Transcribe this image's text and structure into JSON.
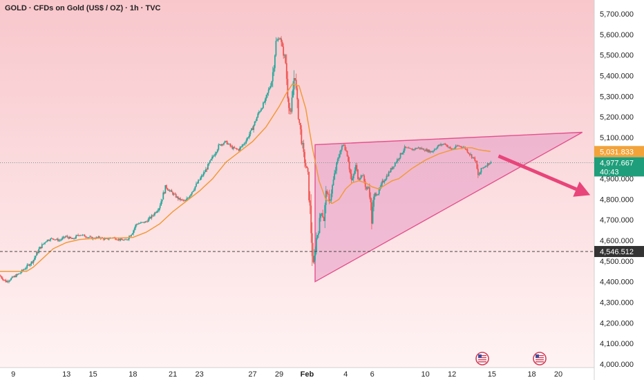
{
  "header": {
    "title": "GOLD · CFDs on Gold (US$ / OZ) · 1h · TVC"
  },
  "colors": {
    "bg_top": "#f8c7cc",
    "bg_bottom": "#fff3f3",
    "candle_up": "#26a69a",
    "candle_down": "#ef5350",
    "ma_line": "#f29a3a",
    "wedge_fill": "#e8a0c8",
    "wedge_stroke": "#e4508c",
    "arrow": "#e8457a",
    "current_tag": "#1e9e7a",
    "ma_tag": "#f2a33a",
    "support_tag": "#333333"
  },
  "chart_data": {
    "type": "candlestick",
    "symbol": "GOLD",
    "timeframe": "1h",
    "ylim": [
      4000,
      5750
    ],
    "y_ticks": [
      {
        "value": 4000,
        "label": "4,000.000"
      },
      {
        "value": 4100,
        "label": "4,100.000"
      },
      {
        "value": 4200,
        "label": "4,200.000"
      },
      {
        "value": 4300,
        "label": "4,300.000"
      },
      {
        "value": 4400,
        "label": "4,400.000"
      },
      {
        "value": 4500,
        "label": "4,500.000"
      },
      {
        "value": 4600,
        "label": "4,600.000"
      },
      {
        "value": 4700,
        "label": "4,700.000"
      },
      {
        "value": 4800,
        "label": "4,800.000"
      },
      {
        "value": 4900,
        "label": "4,900.000"
      },
      {
        "value": 5100,
        "label": "5,100.000"
      },
      {
        "value": 5200,
        "label": "5,200.000"
      },
      {
        "value": 5300,
        "label": "5,300.000"
      },
      {
        "value": 5400,
        "label": "5,400.000"
      },
      {
        "value": 5500,
        "label": "5,500.000"
      },
      {
        "value": 5600,
        "label": "5,600.000"
      },
      {
        "value": 5700,
        "label": "5,700.000"
      }
    ],
    "x_ticks": [
      {
        "t": 1,
        "label": "9"
      },
      {
        "t": 5,
        "label": "13"
      },
      {
        "t": 7,
        "label": "15"
      },
      {
        "t": 10,
        "label": "18"
      },
      {
        "t": 13,
        "label": "21"
      },
      {
        "t": 15,
        "label": "23"
      },
      {
        "t": 19,
        "label": "27"
      },
      {
        "t": 21,
        "label": "29"
      },
      {
        "t": 23.1,
        "label": "Feb"
      },
      {
        "t": 26,
        "label": "4"
      },
      {
        "t": 28,
        "label": "6"
      },
      {
        "t": 32,
        "label": "10"
      },
      {
        "t": 34,
        "label": "12"
      },
      {
        "t": 37,
        "label": "15"
      },
      {
        "t": 40,
        "label": "18"
      },
      {
        "t": 42,
        "label": "20"
      }
    ],
    "xlim": [
      0,
      44.7
    ],
    "price_path": [
      [
        0,
        4430
      ],
      [
        0.5,
        4400
      ],
      [
        1,
        4420
      ],
      [
        1.5,
        4440
      ],
      [
        2,
        4470
      ],
      [
        2.5,
        4500
      ],
      [
        3,
        4560
      ],
      [
        3.5,
        4600
      ],
      [
        4,
        4610
      ],
      [
        4.5,
        4600
      ],
      [
        5,
        4620
      ],
      [
        5.5,
        4605
      ],
      [
        6,
        4630
      ],
      [
        6.5,
        4620
      ],
      [
        7,
        4610
      ],
      [
        7.5,
        4615
      ],
      [
        8,
        4605
      ],
      [
        8.5,
        4615
      ],
      [
        9,
        4605
      ],
      [
        9.5,
        4600
      ],
      [
        10,
        4640
      ],
      [
        10.3,
        4680
      ],
      [
        11,
        4690
      ],
      [
        11.5,
        4720
      ],
      [
        12,
        4760
      ],
      [
        12.5,
        4860
      ],
      [
        13,
        4830
      ],
      [
        13.5,
        4800
      ],
      [
        14,
        4790
      ],
      [
        14.5,
        4840
      ],
      [
        15,
        4890
      ],
      [
        15.5,
        4940
      ],
      [
        16,
        5000
      ],
      [
        16.5,
        5060
      ],
      [
        17,
        5080
      ],
      [
        17.5,
        5050
      ],
      [
        18,
        5040
      ],
      [
        18.5,
        5080
      ],
      [
        19,
        5140
      ],
      [
        19.5,
        5220
      ],
      [
        20,
        5280
      ],
      [
        20.5,
        5380
      ],
      [
        20.8,
        5560
      ],
      [
        21.1,
        5590
      ],
      [
        21.3,
        5520
      ],
      [
        21.5,
        5480
      ],
      [
        21.7,
        5300
      ],
      [
        21.9,
        5200
      ],
      [
        22.2,
        5420
      ],
      [
        22.4,
        5250
      ],
      [
        22.6,
        5150
      ],
      [
        22.9,
        5000
      ],
      [
        23.2,
        4920
      ],
      [
        23.4,
        4700
      ],
      [
        23.6,
        4450
      ],
      [
        23.8,
        4600
      ],
      [
        24,
        4650
      ],
      [
        24.2,
        4750
      ],
      [
        24.4,
        4700
      ],
      [
        24.6,
        4850
      ],
      [
        24.8,
        4780
      ],
      [
        25,
        4850
      ],
      [
        25.3,
        4950
      ],
      [
        25.6,
        5030
      ],
      [
        25.9,
        5070
      ],
      [
        26.2,
        5010
      ],
      [
        26.5,
        4880
      ],
      [
        26.8,
        4960
      ],
      [
        27,
        4900
      ],
      [
        27.3,
        4920
      ],
      [
        27.6,
        4850
      ],
      [
        27.8,
        4860
      ],
      [
        28,
        4700
      ],
      [
        28.2,
        4820
      ],
      [
        28.5,
        4830
      ],
      [
        28.8,
        4880
      ],
      [
        29,
        4900
      ],
      [
        29.5,
        4950
      ],
      [
        30,
        5000
      ],
      [
        30.5,
        5050
      ],
      [
        31,
        5040
      ],
      [
        31.5,
        5050
      ],
      [
        32,
        5040
      ],
      [
        32.5,
        5030
      ],
      [
        33,
        5060
      ],
      [
        33.5,
        5070
      ],
      [
        34,
        5040
      ],
      [
        34.5,
        5060
      ],
      [
        35,
        5050
      ],
      [
        35.5,
        5010
      ],
      [
        35.8,
        4990
      ],
      [
        36,
        4910
      ],
      [
        36.3,
        4950
      ],
      [
        36.7,
        4970
      ],
      [
        36.9,
        4978
      ]
    ],
    "ma_path": [
      [
        0,
        4450
      ],
      [
        1,
        4450
      ],
      [
        2,
        4450
      ],
      [
        2.5,
        4470
      ],
      [
        3,
        4500
      ],
      [
        4,
        4560
      ],
      [
        5,
        4590
      ],
      [
        6,
        4605
      ],
      [
        7,
        4610
      ],
      [
        8,
        4612
      ],
      [
        9,
        4612
      ],
      [
        10,
        4615
      ],
      [
        11,
        4640
      ],
      [
        12,
        4680
      ],
      [
        13,
        4740
      ],
      [
        14,
        4790
      ],
      [
        15,
        4840
      ],
      [
        16,
        4900
      ],
      [
        17,
        4980
      ],
      [
        18,
        5030
      ],
      [
        19,
        5080
      ],
      [
        20,
        5150
      ],
      [
        21,
        5250
      ],
      [
        21.5,
        5310
      ],
      [
        22,
        5360
      ],
      [
        22.5,
        5350
      ],
      [
        23,
        5240
      ],
      [
        23.5,
        5050
      ],
      [
        24,
        4890
      ],
      [
        24.5,
        4800
      ],
      [
        25,
        4780
      ],
      [
        25.5,
        4800
      ],
      [
        26,
        4850
      ],
      [
        26.5,
        4880
      ],
      [
        27,
        4890
      ],
      [
        27.5,
        4880
      ],
      [
        28,
        4860
      ],
      [
        28.5,
        4850
      ],
      [
        29,
        4870
      ],
      [
        29.5,
        4890
      ],
      [
        30,
        4900
      ],
      [
        31,
        4950
      ],
      [
        32,
        4990
      ],
      [
        33,
        5020
      ],
      [
        34,
        5040
      ],
      [
        35,
        5050
      ],
      [
        35.5,
        5050
      ],
      [
        36,
        5040
      ],
      [
        36.9,
        5032
      ]
    ],
    "wedge": [
      [
        23.7,
        4400
      ],
      [
        43.8,
        5125
      ],
      [
        23.7,
        5065
      ]
    ],
    "arrow": {
      "from": [
        37.5,
        5010
      ],
      "to": [
        44.4,
        4820
      ]
    },
    "support_line": 4546.512,
    "current_line": 4977.667,
    "price_tags": {
      "ma_value": {
        "value": 5031.833,
        "label": "5,031.833"
      },
      "current": {
        "value": 4977.667,
        "label": "4,977.667",
        "countdown": "40:43"
      },
      "support": {
        "value": 4546.512,
        "label": "4,546.512"
      }
    }
  }
}
